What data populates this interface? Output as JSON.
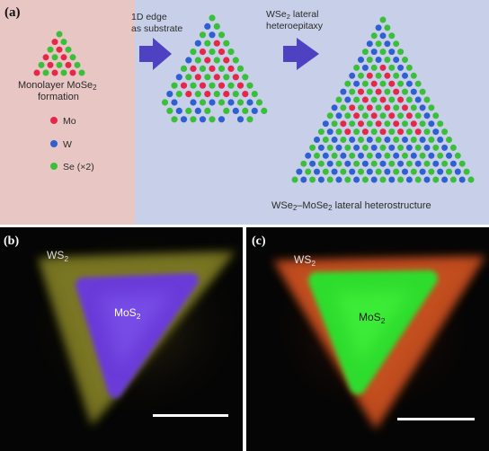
{
  "panel_a": {
    "label": "(a)",
    "step1": {
      "line1": "1D edge",
      "line2": "as substrate"
    },
    "step2": {
      "prefix": "WSe",
      "sub": "2",
      "suffix": " lateral",
      "line2": "heteroepitaxy"
    },
    "formation": {
      "prefix": "Monolayer MoSe",
      "sub": "2",
      "line2": "formation"
    },
    "legend": [
      {
        "label": "Mo",
        "color": "#e4284a"
      },
      {
        "label": "W",
        "color": "#2f5fd0"
      },
      {
        "label": "Se (×2)",
        "color": "#3bbf3b"
      }
    ],
    "hetero": {
      "p1": "WSe",
      "s1": "2",
      "p2": "–MoSe",
      "s2": "2",
      "p3": " lateral heterostructure"
    },
    "colors": {
      "left_bg": "#e8c6c4",
      "right_bg": "#c7d0e8",
      "arrow": "#4f42c2"
    }
  },
  "panel_b": {
    "label": "(b)",
    "outer": {
      "p": "WS",
      "s": "2"
    },
    "inner": {
      "p": "MoS",
      "s": "2"
    }
  },
  "panel_c": {
    "label": "(c)",
    "outer": {
      "p": "WS",
      "s": "2"
    },
    "inner": {
      "p": "MoS",
      "s": "2"
    }
  }
}
